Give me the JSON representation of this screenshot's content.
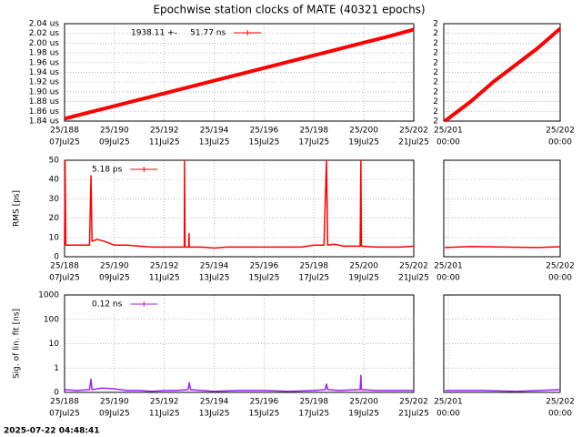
{
  "title": "Epochwise station clocks of MATE (40321 epochs)",
  "timestamp": "2025-07-22 04:48:41",
  "chart_data": [
    {
      "type": "line",
      "grid": true,
      "log": false,
      "show_ytick_labels": true,
      "xlim": [
        188,
        202
      ],
      "ylim": [
        1.84,
        2.04
      ],
      "xticks": [
        {
          "value": 188,
          "label": "25/188"
        },
        {
          "value": 190,
          "label": "25/190"
        },
        {
          "value": 192,
          "label": "25/192"
        },
        {
          "value": 194,
          "label": "25/194"
        },
        {
          "value": 196,
          "label": "25/196"
        },
        {
          "value": 198,
          "label": "25/198"
        },
        {
          "value": 200,
          "label": "25/200"
        },
        {
          "value": 202,
          "label": "25/202"
        }
      ],
      "xtick_sublabels": [
        "07Jul25",
        "09Jul25",
        "11Jul25",
        "13Jul25",
        "15Jul25",
        "17Jul25",
        "19Jul25",
        "21Jul25"
      ],
      "yticks": [
        {
          "value": 1.84,
          "label": "1.84 us"
        },
        {
          "value": 1.86,
          "label": "1.86 us"
        },
        {
          "value": 1.88,
          "label": "1.88 us"
        },
        {
          "value": 1.9,
          "label": "1.90 us"
        },
        {
          "value": 1.92,
          "label": "1.92 us"
        },
        {
          "value": 1.94,
          "label": "1.94 us"
        },
        {
          "value": 1.96,
          "label": "1.96 us"
        },
        {
          "value": 1.98,
          "label": "1.98 us"
        },
        {
          "value": 2.0,
          "label": "2.00 us"
        },
        {
          "value": 2.02,
          "label": "2.02 us"
        },
        {
          "value": 2.04,
          "label": "2.04 us"
        }
      ],
      "series": [
        {
          "name": "1938.11 +-     51.77 ns",
          "color": "#ff0000",
          "width": 4,
          "x": [
            188,
            189,
            190,
            191,
            192,
            193,
            194,
            195,
            196,
            197,
            198,
            199,
            200,
            201,
            202
          ],
          "values": [
            1.845,
            1.858,
            1.871,
            1.884,
            1.897,
            1.91,
            1.923,
            1.936,
            1.949,
            1.962,
            1.975,
            1.988,
            2.001,
            2.014,
            2.028
          ]
        }
      ]
    },
    {
      "type": "line",
      "grid": true,
      "log": false,
      "show_ytick_labels": true,
      "xlim": [
        200.96,
        202.0
      ],
      "ylim": [
        2.008,
        2.028
      ],
      "xticks": [
        {
          "value": 201,
          "label": "25/201"
        },
        {
          "value": 202,
          "label": "25/202"
        }
      ],
      "xtick_sublabels": [
        "00:00",
        "00:00"
      ],
      "yticks": [
        {
          "value": 2.008,
          "label": "2"
        },
        {
          "value": 2.01,
          "label": "2"
        },
        {
          "value": 2.012,
          "label": "2"
        },
        {
          "value": 2.014,
          "label": "2"
        },
        {
          "value": 2.016,
          "label": "2"
        },
        {
          "value": 2.018,
          "label": "2"
        },
        {
          "value": 2.02,
          "label": "2"
        },
        {
          "value": 2.022,
          "label": "2"
        },
        {
          "value": 2.024,
          "label": "2"
        },
        {
          "value": 2.026,
          "label": "2"
        },
        {
          "value": 2.028,
          "label": "2"
        }
      ],
      "series": [
        {
          "color": "#ff0000",
          "width": 4,
          "x": [
            200.97,
            201.2,
            201.4,
            201.6,
            201.8,
            202.0
          ],
          "values": [
            2.008,
            2.012,
            2.016,
            2.0195,
            2.023,
            2.027
          ]
        }
      ]
    },
    {
      "type": "line",
      "grid": true,
      "log": false,
      "show_ytick_labels": true,
      "ylabel": "RMS [ps]",
      "xlim": [
        188,
        202
      ],
      "ylim": [
        0,
        50
      ],
      "xticks": [
        {
          "value": 188,
          "label": "25/188"
        },
        {
          "value": 190,
          "label": "25/190"
        },
        {
          "value": 192,
          "label": "25/192"
        },
        {
          "value": 194,
          "label": "25/194"
        },
        {
          "value": 196,
          "label": "25/196"
        },
        {
          "value": 198,
          "label": "25/198"
        },
        {
          "value": 200,
          "label": "25/200"
        },
        {
          "value": 202,
          "label": "25/202"
        }
      ],
      "xtick_sublabels": [
        "07Jul25",
        "09Jul25",
        "11Jul25",
        "13Jul25",
        "15Jul25",
        "17Jul25",
        "19Jul25",
        "21Jul25"
      ],
      "yticks": [
        0,
        10,
        20,
        30,
        40,
        50
      ],
      "series": [
        {
          "name": "5.18 ps",
          "color": "#ff0000",
          "width": 1.5,
          "x": [
            188.0,
            188.02,
            188.05,
            188.5,
            189.0,
            189.06,
            189.1,
            189.3,
            189.6,
            190.0,
            190.5,
            191,
            191.5,
            192,
            192.5,
            192.8,
            192.81,
            192.83,
            192.98,
            192.99,
            193.0,
            193.5,
            194,
            194.5,
            195,
            195.5,
            196,
            196.5,
            197,
            197.5,
            198,
            198.4,
            198.5,
            198.55,
            198.8,
            199.2,
            199.85,
            199.88,
            199.9,
            200.5,
            201,
            201.5,
            202
          ],
          "values": [
            6,
            50,
            6,
            6,
            6,
            42,
            8,
            9,
            8,
            6,
            6,
            5.5,
            5,
            5,
            5,
            5,
            50,
            5,
            5,
            12,
            5,
            5,
            4.5,
            5,
            5,
            5,
            5,
            5,
            5,
            5,
            6,
            6,
            50,
            6,
            6.5,
            5.5,
            5.5,
            50,
            5.5,
            5,
            5,
            5,
            5.5
          ]
        }
      ]
    },
    {
      "type": "line",
      "grid": true,
      "log": false,
      "show_ytick_labels": false,
      "xlim": [
        200.96,
        202.0
      ],
      "ylim": [
        0,
        50
      ],
      "xticks": [
        {
          "value": 201,
          "label": "25/201"
        },
        {
          "value": 202,
          "label": "25/202"
        }
      ],
      "xtick_sublabels": [
        "00:00",
        "00:00"
      ],
      "yticks": [
        0,
        10,
        20,
        30,
        40,
        50
      ],
      "series": [
        {
          "color": "#ff0000",
          "width": 1.5,
          "x": [
            200.97,
            201.2,
            201.5,
            201.8,
            202.0
          ],
          "values": [
            4.8,
            5.3,
            5.0,
            4.8,
            5.2
          ]
        }
      ]
    },
    {
      "type": "line",
      "grid": true,
      "log": true,
      "show_ytick_labels": true,
      "ylabel": "Sig. of lin. fit [ns]",
      "xlim": [
        188,
        202
      ],
      "ylim": [
        0.1,
        1000
      ],
      "xticks": [
        {
          "value": 188,
          "label": "25/188"
        },
        {
          "value": 190,
          "label": "25/190"
        },
        {
          "value": 192,
          "label": "25/192"
        },
        {
          "value": 194,
          "label": "25/194"
        },
        {
          "value": 196,
          "label": "25/196"
        },
        {
          "value": 198,
          "label": "25/198"
        },
        {
          "value": 200,
          "label": "25/200"
        },
        {
          "value": 202,
          "label": "25/202"
        }
      ],
      "xtick_sublabels": [
        "07Jul25",
        "09Jul25",
        "11Jul25",
        "13Jul25",
        "15Jul25",
        "17Jul25",
        "19Jul25",
        "21Jul25"
      ],
      "yticks": [
        {
          "value": 0.1,
          "label": "0"
        },
        1,
        10,
        100,
        1000
      ],
      "series": [
        {
          "name": "0.12 ns",
          "color": "#a020f0",
          "width": 1.5,
          "x": [
            188,
            188.5,
            189,
            189.06,
            189.1,
            189.5,
            190,
            190.5,
            191,
            191.5,
            192,
            192.5,
            192.95,
            193,
            193.05,
            193.5,
            194,
            195,
            196,
            197,
            198,
            198.45,
            198.5,
            198.55,
            199,
            199.85,
            199.88,
            199.9,
            200.5,
            201,
            202
          ],
          "values": [
            0.13,
            0.12,
            0.13,
            0.35,
            0.13,
            0.15,
            0.14,
            0.12,
            0.12,
            0.11,
            0.12,
            0.12,
            0.13,
            0.25,
            0.13,
            0.12,
            0.11,
            0.12,
            0.12,
            0.11,
            0.12,
            0.13,
            0.22,
            0.13,
            0.12,
            0.13,
            0.5,
            0.13,
            0.12,
            0.12,
            0.12
          ]
        }
      ]
    },
    {
      "type": "line",
      "grid": true,
      "log": true,
      "show_ytick_labels": false,
      "xlim": [
        200.96,
        202.0
      ],
      "ylim": [
        0.1,
        1000
      ],
      "xticks": [
        {
          "value": 201,
          "label": "25/201"
        },
        {
          "value": 202,
          "label": "25/202"
        }
      ],
      "xtick_sublabels": [
        "00:00",
        "00:00"
      ],
      "yticks": [
        {
          "value": 0.1,
          "label": "0"
        },
        1,
        10,
        100,
        1000
      ],
      "series": [
        {
          "color": "#a020f0",
          "width": 1.5,
          "x": [
            200.97,
            201.3,
            201.6,
            202.0
          ],
          "values": [
            0.12,
            0.12,
            0.11,
            0.13
          ]
        }
      ]
    }
  ]
}
